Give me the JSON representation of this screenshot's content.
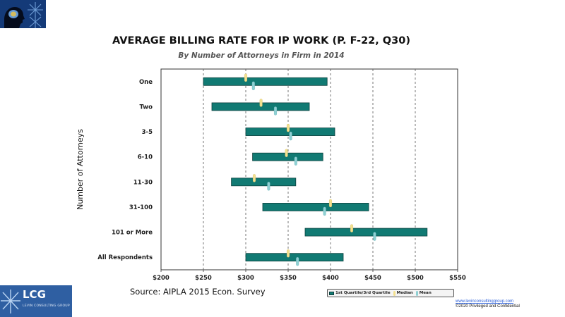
{
  "chart_data": {
    "type": "bar",
    "title": "AVERAGE BILLING RATE FOR IP WORK (P. F-22, Q30)",
    "subtitle": "By Number of Attorneys in Firm in 2014",
    "ylabel": "Number of Attorneys",
    "xlabel": "",
    "xlim": [
      200,
      550
    ],
    "x_ticks": [
      "$200",
      "$250",
      "$300",
      "$350",
      "$400",
      "$450",
      "$500",
      "$550"
    ],
    "categories": [
      "One",
      "Two",
      "3-5",
      "6-10",
      "11-30",
      "31-100",
      "101 or More",
      "All Respondents"
    ],
    "series": [
      {
        "name": "1st Quartile/3rd Quartile",
        "ranges": [
          [
            250,
            396
          ],
          [
            260,
            375
          ],
          [
            300,
            405
          ],
          [
            308,
            391
          ],
          [
            283,
            359
          ],
          [
            320,
            445
          ],
          [
            370,
            514
          ],
          [
            300,
            415
          ]
        ]
      },
      {
        "name": "Median",
        "values": [
          300,
          318,
          350,
          348,
          310,
          400,
          425,
          350
        ]
      },
      {
        "name": "Mean",
        "values": [
          309,
          335,
          353,
          359,
          327,
          393,
          452,
          361
        ]
      }
    ],
    "grid": "vertical dashed",
    "legend_position": "bottom-right"
  },
  "source_text": "Source: AIPLA 2015 Econ. Survey",
  "legend": {
    "quartile_label": "1st Quartile/3rd Quartile",
    "median_label": "Median",
    "mean_label": "Mean"
  },
  "footer": {
    "website": "www.levinconsultinggroup.com",
    "copyright": "©2020 Privileged and Confidential"
  },
  "logo": {
    "name": "LCG",
    "subtitle": "LEVIN CONSULTING GROUP"
  },
  "colors": {
    "bar_fill": "#117a73",
    "bar_stroke": "#0b3f3c",
    "median": "#f3e08e",
    "mean": "#8fd0d3",
    "plot_bg": "#ffffff",
    "grid": "#555555"
  }
}
